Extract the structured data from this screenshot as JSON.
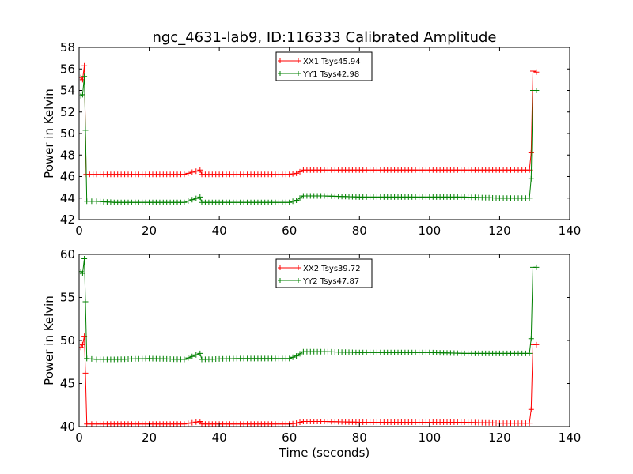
{
  "title": "ngc_4631-lab9, ID:116333 Calibrated Amplitude",
  "chart_data": [
    {
      "type": "line",
      "ylabel": "Power in Kelvin",
      "xlabel": "",
      "xlim": [
        0,
        140
      ],
      "ylim": [
        42,
        58
      ],
      "xticks": [
        "0",
        "20",
        "40",
        "60",
        "80",
        "100",
        "120",
        "140"
      ],
      "yticks": [
        "42",
        "44",
        "46",
        "48",
        "50",
        "52",
        "54",
        "56",
        "58"
      ],
      "legend_position": "top-center",
      "series": [
        {
          "name": "XX1 Tsys45.94",
          "color": "#ff0000",
          "points": [
            [
              0.5,
              55.2
            ],
            [
              1.0,
              55.0
            ],
            [
              1.5,
              56.3
            ],
            [
              2.0,
              46.2
            ],
            [
              5,
              46.2
            ],
            [
              10,
              46.2
            ],
            [
              20,
              46.2
            ],
            [
              30,
              46.2
            ],
            [
              34.5,
              46.6
            ],
            [
              35,
              46.2
            ],
            [
              45,
              46.2
            ],
            [
              55,
              46.2
            ],
            [
              60,
              46.2
            ],
            [
              62,
              46.3
            ],
            [
              64,
              46.6
            ],
            [
              70,
              46.6
            ],
            [
              80,
              46.6
            ],
            [
              90,
              46.6
            ],
            [
              100,
              46.6
            ],
            [
              110,
              46.6
            ],
            [
              120,
              46.6
            ],
            [
              128.5,
              46.6
            ],
            [
              129.0,
              48.2
            ],
            [
              129.5,
              55.8
            ],
            [
              130.5,
              55.7
            ]
          ]
        },
        {
          "name": "YY1 Tsys42.98",
          "color": "#008000",
          "points": [
            [
              0.5,
              53.5
            ],
            [
              1.0,
              53.6
            ],
            [
              1.5,
              55.3
            ],
            [
              1.8,
              50.3
            ],
            [
              2.2,
              43.7
            ],
            [
              5,
              43.7
            ],
            [
              10,
              43.6
            ],
            [
              20,
              43.6
            ],
            [
              30,
              43.6
            ],
            [
              34.5,
              44.1
            ],
            [
              35,
              43.6
            ],
            [
              45,
              43.6
            ],
            [
              55,
              43.6
            ],
            [
              60,
              43.6
            ],
            [
              62,
              43.8
            ],
            [
              64,
              44.2
            ],
            [
              70,
              44.2
            ],
            [
              80,
              44.1
            ],
            [
              90,
              44.1
            ],
            [
              100,
              44.1
            ],
            [
              110,
              44.1
            ],
            [
              120,
              44.0
            ],
            [
              128.5,
              44.0
            ],
            [
              129.0,
              45.8
            ],
            [
              129.5,
              54.0
            ],
            [
              130.5,
              54.0
            ]
          ]
        }
      ]
    },
    {
      "type": "line",
      "ylabel": "Power in Kelvin",
      "xlabel": "Time (seconds)",
      "xlim": [
        0,
        140
      ],
      "ylim": [
        40,
        60
      ],
      "xticks": [
        "0",
        "20",
        "40",
        "60",
        "80",
        "100",
        "120",
        "140"
      ],
      "yticks": [
        "40",
        "45",
        "50",
        "55",
        "60"
      ],
      "legend_position": "top-center",
      "series": [
        {
          "name": "XX2 Tsys39.72",
          "color": "#ff0000",
          "points": [
            [
              0.5,
              49.2
            ],
            [
              1.0,
              49.5
            ],
            [
              1.5,
              50.5
            ],
            [
              1.8,
              46.2
            ],
            [
              2.2,
              40.3
            ],
            [
              5,
              40.3
            ],
            [
              10,
              40.3
            ],
            [
              20,
              40.3
            ],
            [
              30,
              40.3
            ],
            [
              34.5,
              40.6
            ],
            [
              35,
              40.3
            ],
            [
              45,
              40.3
            ],
            [
              55,
              40.3
            ],
            [
              60,
              40.3
            ],
            [
              62,
              40.4
            ],
            [
              64,
              40.6
            ],
            [
              70,
              40.6
            ],
            [
              80,
              40.5
            ],
            [
              90,
              40.5
            ],
            [
              100,
              40.5
            ],
            [
              110,
              40.5
            ],
            [
              120,
              40.4
            ],
            [
              128.5,
              40.4
            ],
            [
              129.0,
              42.0
            ],
            [
              129.5,
              49.5
            ],
            [
              130.5,
              49.5
            ]
          ]
        },
        {
          "name": "YY2 Tsys47.87",
          "color": "#008000",
          "points": [
            [
              0.5,
              58.0
            ],
            [
              1.0,
              57.8
            ],
            [
              1.5,
              59.5
            ],
            [
              1.8,
              54.5
            ],
            [
              2.2,
              47.9
            ],
            [
              5,
              47.8
            ],
            [
              10,
              47.8
            ],
            [
              20,
              47.9
            ],
            [
              30,
              47.8
            ],
            [
              34.5,
              48.5
            ],
            [
              35,
              47.8
            ],
            [
              45,
              47.9
            ],
            [
              55,
              47.9
            ],
            [
              60,
              47.9
            ],
            [
              62,
              48.2
            ],
            [
              64,
              48.7
            ],
            [
              70,
              48.7
            ],
            [
              80,
              48.6
            ],
            [
              90,
              48.6
            ],
            [
              100,
              48.6
            ],
            [
              110,
              48.5
            ],
            [
              120,
              48.5
            ],
            [
              128.5,
              48.5
            ],
            [
              129.0,
              50.2
            ],
            [
              129.5,
              58.5
            ],
            [
              130.5,
              58.5
            ]
          ]
        }
      ]
    }
  ]
}
